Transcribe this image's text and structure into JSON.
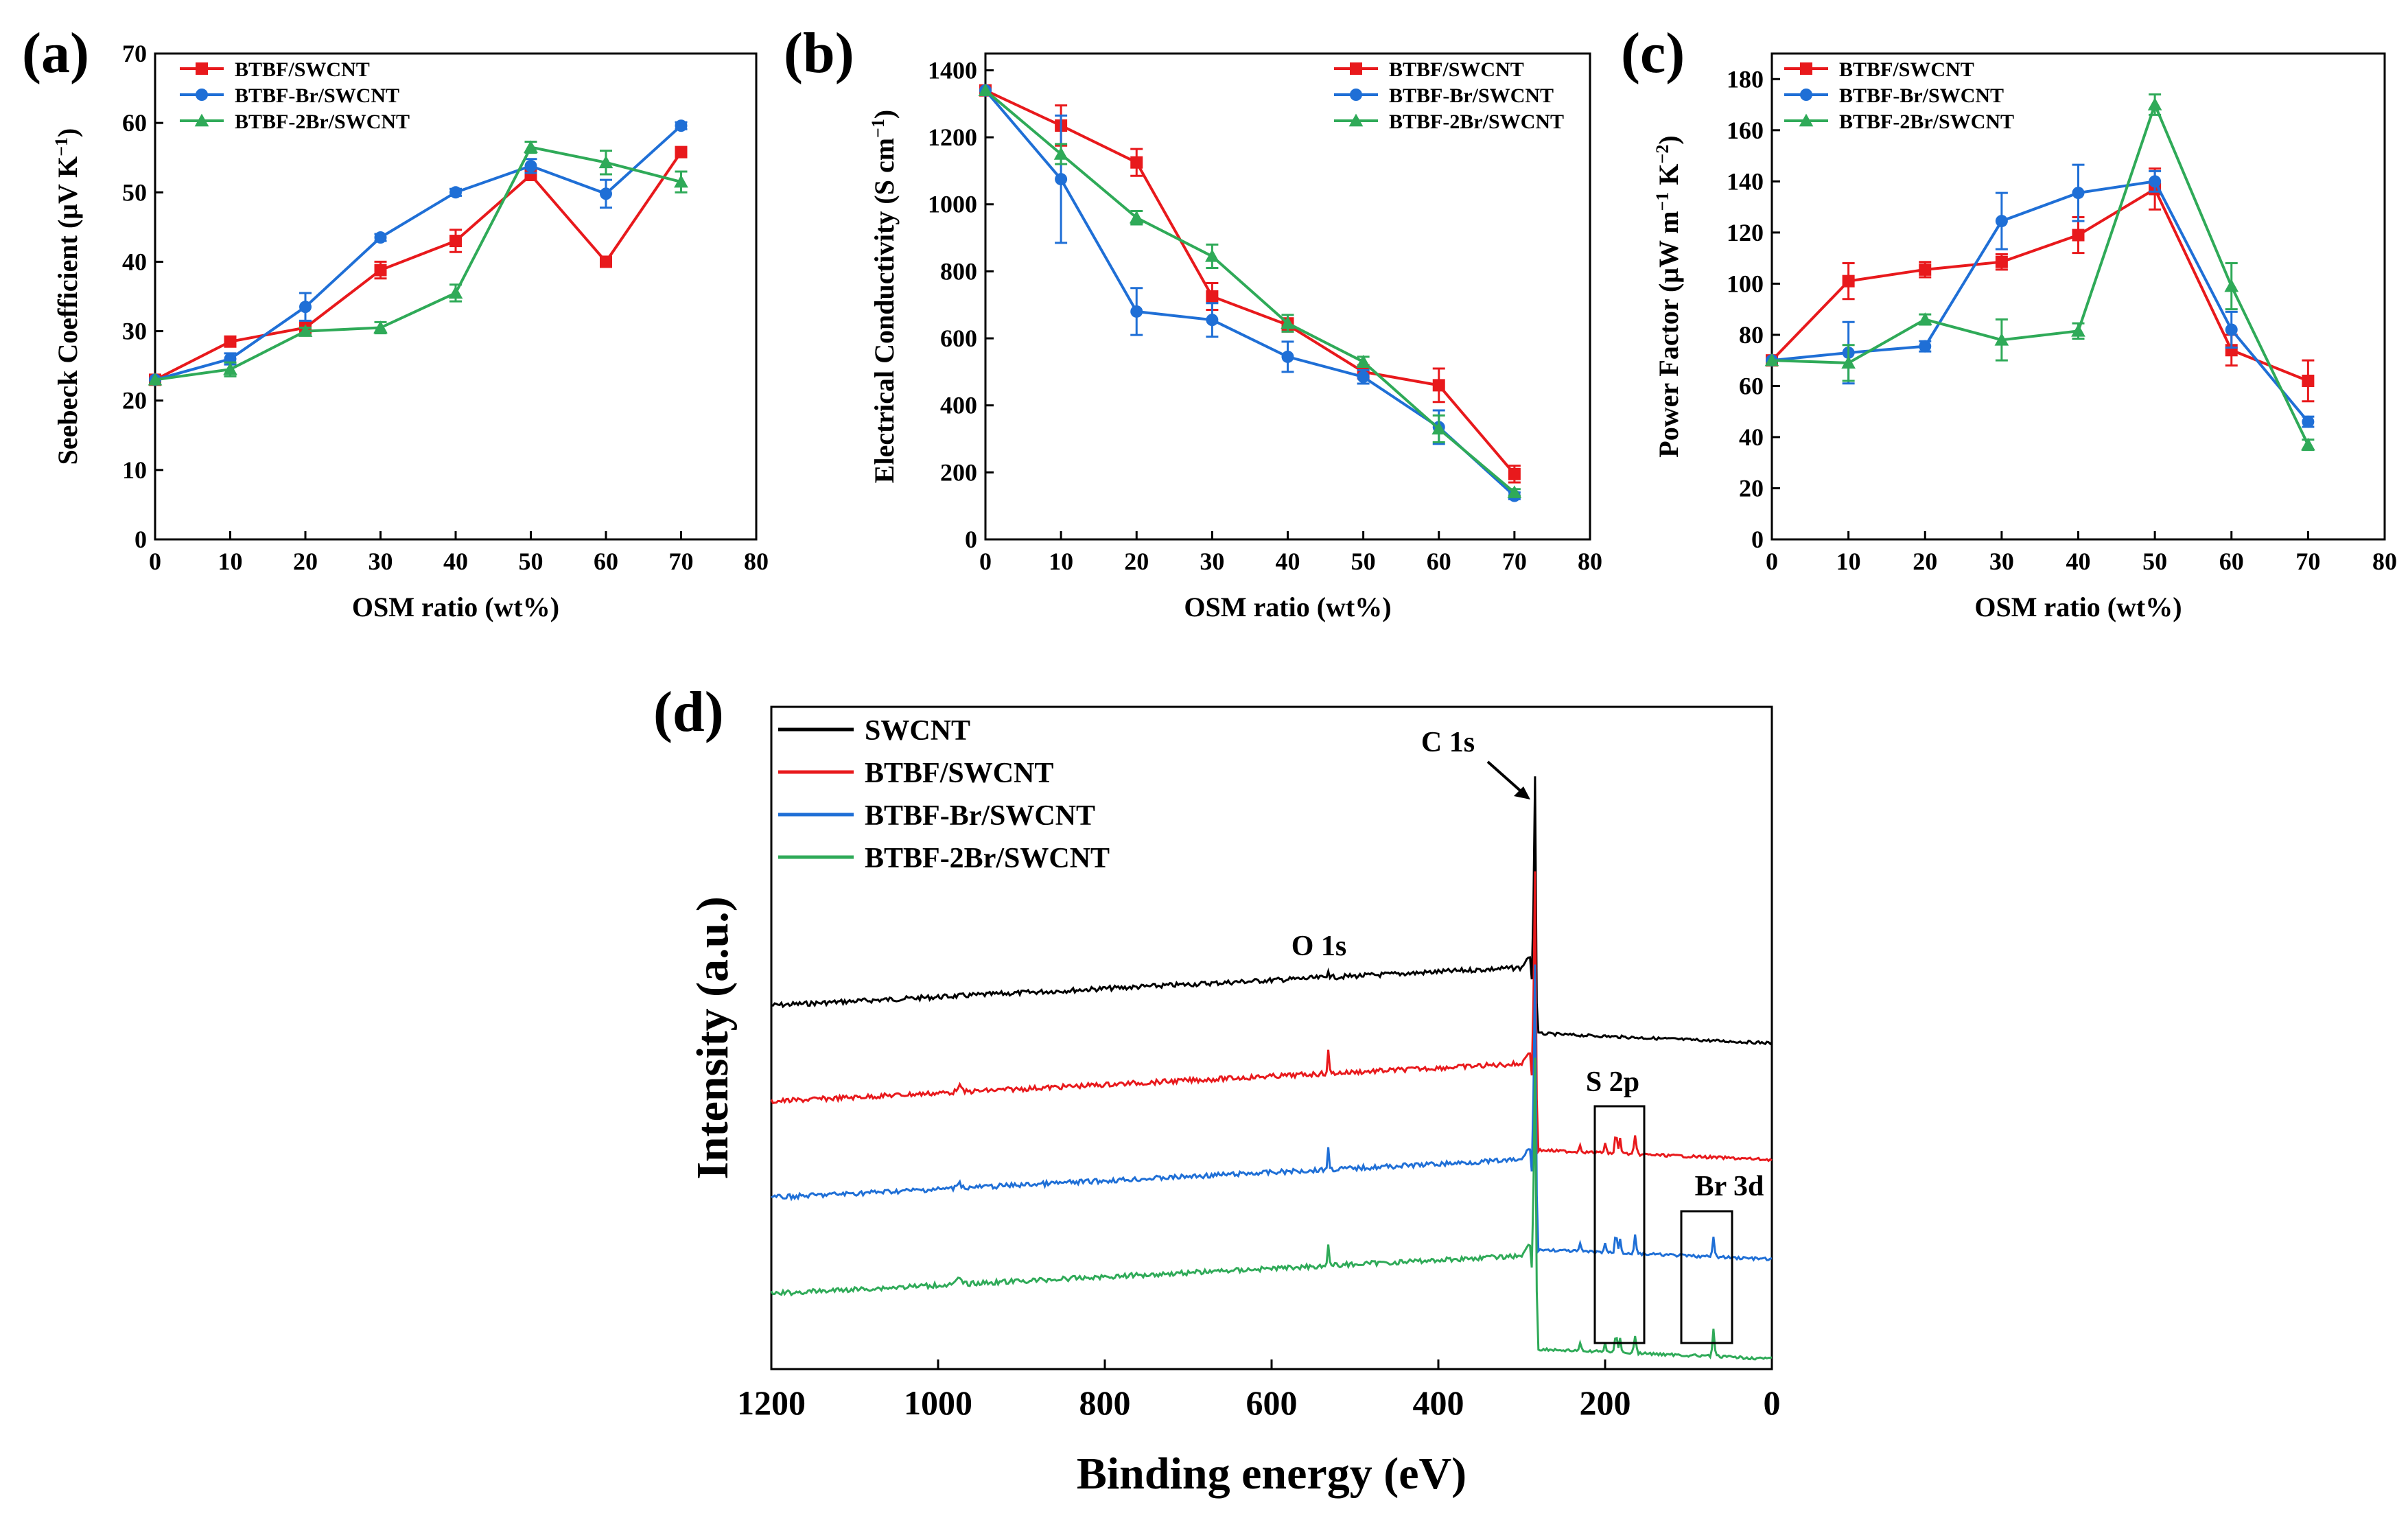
{
  "chart_data": [
    {
      "panel": "(a)",
      "type": "line",
      "xlabel": "OSM ratio (wt%)",
      "ylabel": "Seebeck Coefficient (μV K⁻¹)",
      "ylabel_parts": {
        "main": "Seebeck Coefficient (μV K",
        "sup": "−1",
        "end": ")"
      },
      "xlim": [
        0,
        80
      ],
      "ylim": [
        0,
        70
      ],
      "xticks": [
        0,
        10,
        20,
        30,
        40,
        50,
        60,
        70,
        80
      ],
      "yticks": [
        0,
        10,
        20,
        30,
        40,
        50,
        60,
        70
      ],
      "legend_position": "top-left",
      "series": [
        {
          "name": "BTBF/SWCNT",
          "color": "#e8191c",
          "marker": "square",
          "x": [
            0,
            10,
            20,
            30,
            40,
            50,
            60,
            70
          ],
          "y": [
            23,
            28.5,
            30.5,
            38.8,
            43,
            52.5,
            40,
            55.8
          ],
          "err": [
            0,
            0.6,
            0.8,
            1.2,
            1.6,
            0.7,
            0.5,
            0.6
          ]
        },
        {
          "name": "BTBF-Br/SWCNT",
          "color": "#1f6fd6",
          "marker": "circle",
          "x": [
            0,
            10,
            20,
            30,
            40,
            50,
            60,
            70
          ],
          "y": [
            23,
            26,
            33.5,
            43.5,
            50,
            53.8,
            49.8,
            59.6
          ],
          "err": [
            0,
            0.8,
            2,
            0.5,
            0.5,
            1,
            2,
            0.5
          ]
        },
        {
          "name": "BTBF-2Br/SWCNT",
          "color": "#2faa58",
          "marker": "triangle",
          "x": [
            0,
            10,
            20,
            30,
            40,
            50,
            60,
            70
          ],
          "y": [
            23,
            24.5,
            30,
            30.5,
            35.5,
            56.5,
            54.3,
            51.5
          ],
          "err": [
            0,
            1,
            0.5,
            0.8,
            1.2,
            0.8,
            1.7,
            1.5
          ]
        }
      ]
    },
    {
      "panel": "(b)",
      "type": "line",
      "xlabel": "OSM ratio (wt%)",
      "ylabel": "Electrical Conductivity (S cm⁻¹)",
      "ylabel_parts": {
        "main": "Electrical Conductivity (S cm",
        "sup": "−1",
        "end": ")"
      },
      "xlim": [
        0,
        80
      ],
      "ylim": [
        0,
        1450
      ],
      "xticks": [
        0,
        10,
        20,
        30,
        40,
        50,
        60,
        70,
        80
      ],
      "yticks": [
        0,
        200,
        400,
        600,
        800,
        1000,
        1200,
        1400
      ],
      "legend_position": "top-right",
      "series": [
        {
          "name": "BTBF/SWCNT",
          "color": "#e8191c",
          "marker": "square",
          "x": [
            0,
            10,
            20,
            30,
            40,
            50,
            60,
            70
          ],
          "y": [
            1340,
            1235,
            1125,
            725,
            640,
            500,
            460,
            195
          ],
          "err": [
            0,
            60,
            40,
            40,
            20,
            20,
            50,
            25
          ]
        },
        {
          "name": "BTBF-Br/SWCNT",
          "color": "#1f6fd6",
          "marker": "circle",
          "x": [
            0,
            10,
            20,
            30,
            40,
            50,
            60,
            70
          ],
          "y": [
            1340,
            1075,
            680,
            655,
            545,
            485,
            335,
            130
          ],
          "err": [
            0,
            190,
            70,
            50,
            45,
            20,
            50,
            10
          ]
        },
        {
          "name": "BTBF-2Br/SWCNT",
          "color": "#2faa58",
          "marker": "triangle",
          "x": [
            0,
            10,
            20,
            30,
            40,
            50,
            60,
            70
          ],
          "y": [
            1340,
            1150,
            960,
            845,
            645,
            530,
            330,
            140
          ],
          "err": [
            0,
            30,
            20,
            35,
            25,
            15,
            40,
            10
          ]
        }
      ]
    },
    {
      "panel": "(c)",
      "type": "line",
      "xlabel": "OSM ratio (wt%)",
      "ylabel": "Power Factor (μW m⁻¹ K⁻²)",
      "ylabel_parts": {
        "main": "Power Factor (μW m",
        "sup": "−1",
        "mid": " K",
        "sup2": "−2",
        "end": ")"
      },
      "xlim": [
        0,
        80
      ],
      "ylim": [
        0,
        190
      ],
      "xticks": [
        0,
        10,
        20,
        30,
        40,
        50,
        60,
        70,
        80
      ],
      "yticks": [
        0,
        20,
        40,
        60,
        80,
        100,
        120,
        140,
        160,
        180
      ],
      "legend_position": "top-left",
      "series": [
        {
          "name": "BTBF/SWCNT",
          "color": "#e8191c",
          "marker": "square",
          "x": [
            0,
            10,
            20,
            30,
            40,
            50,
            60,
            70
          ],
          "y": [
            70,
            101,
            105.5,
            108.5,
            119,
            137,
            74,
            62
          ],
          "err": [
            0,
            7,
            3,
            3,
            7,
            8,
            6,
            8
          ]
        },
        {
          "name": "BTBF-Br/SWCNT",
          "color": "#1f6fd6",
          "marker": "circle",
          "x": [
            0,
            10,
            20,
            30,
            40,
            50,
            60,
            70
          ],
          "y": [
            70,
            73,
            75.5,
            124.5,
            135.5,
            140,
            82,
            46
          ],
          "err": [
            0,
            12,
            2,
            11,
            11,
            4,
            7,
            2
          ]
        },
        {
          "name": "BTBF-2Br/SWCNT",
          "color": "#2faa58",
          "marker": "triangle",
          "x": [
            0,
            10,
            20,
            30,
            40,
            50,
            60,
            70
          ],
          "y": [
            70,
            69,
            86,
            78,
            81.5,
            170,
            99,
            37
          ],
          "err": [
            0,
            7,
            2,
            8,
            3,
            4,
            9,
            2
          ]
        }
      ]
    },
    {
      "panel": "(d)",
      "type": "line",
      "xlabel": "Binding energy (eV)",
      "ylabel": "Intensity (a.u.)",
      "xlim": [
        1200,
        0
      ],
      "xticks": [
        1200,
        1000,
        800,
        600,
        400,
        200,
        0
      ],
      "legend_position": "top-left",
      "annotations": [
        "C 1s",
        "O 1s",
        "S 2p",
        "Br 3d"
      ],
      "series": [
        {
          "name": "SWCNT",
          "color": "#000000",
          "baseline": 1.0,
          "peaks": {
            "C 1s": 284.6,
            "O 1s": 532
          }
        },
        {
          "name": "BTBF/SWCNT",
          "color": "#e8191c",
          "baseline": 0.62,
          "peaks": {
            "C 1s": 284.6,
            "O 1s": 532,
            "S 2p": 164
          }
        },
        {
          "name": "BTBF-Br/SWCNT",
          "color": "#1f6fd6",
          "baseline": 0.34,
          "peaks": {
            "C 1s": 284.6,
            "O 1s": 532,
            "S 2p": 164,
            "Br 3d": 70
          }
        },
        {
          "name": "BTBF-2Br/SWCNT",
          "color": "#2faa58",
          "baseline": 0.08,
          "peaks": {
            "C 1s": 284.6,
            "O 1s": 532,
            "S 2p": 164,
            "Br 3d": 70
          }
        }
      ]
    }
  ]
}
